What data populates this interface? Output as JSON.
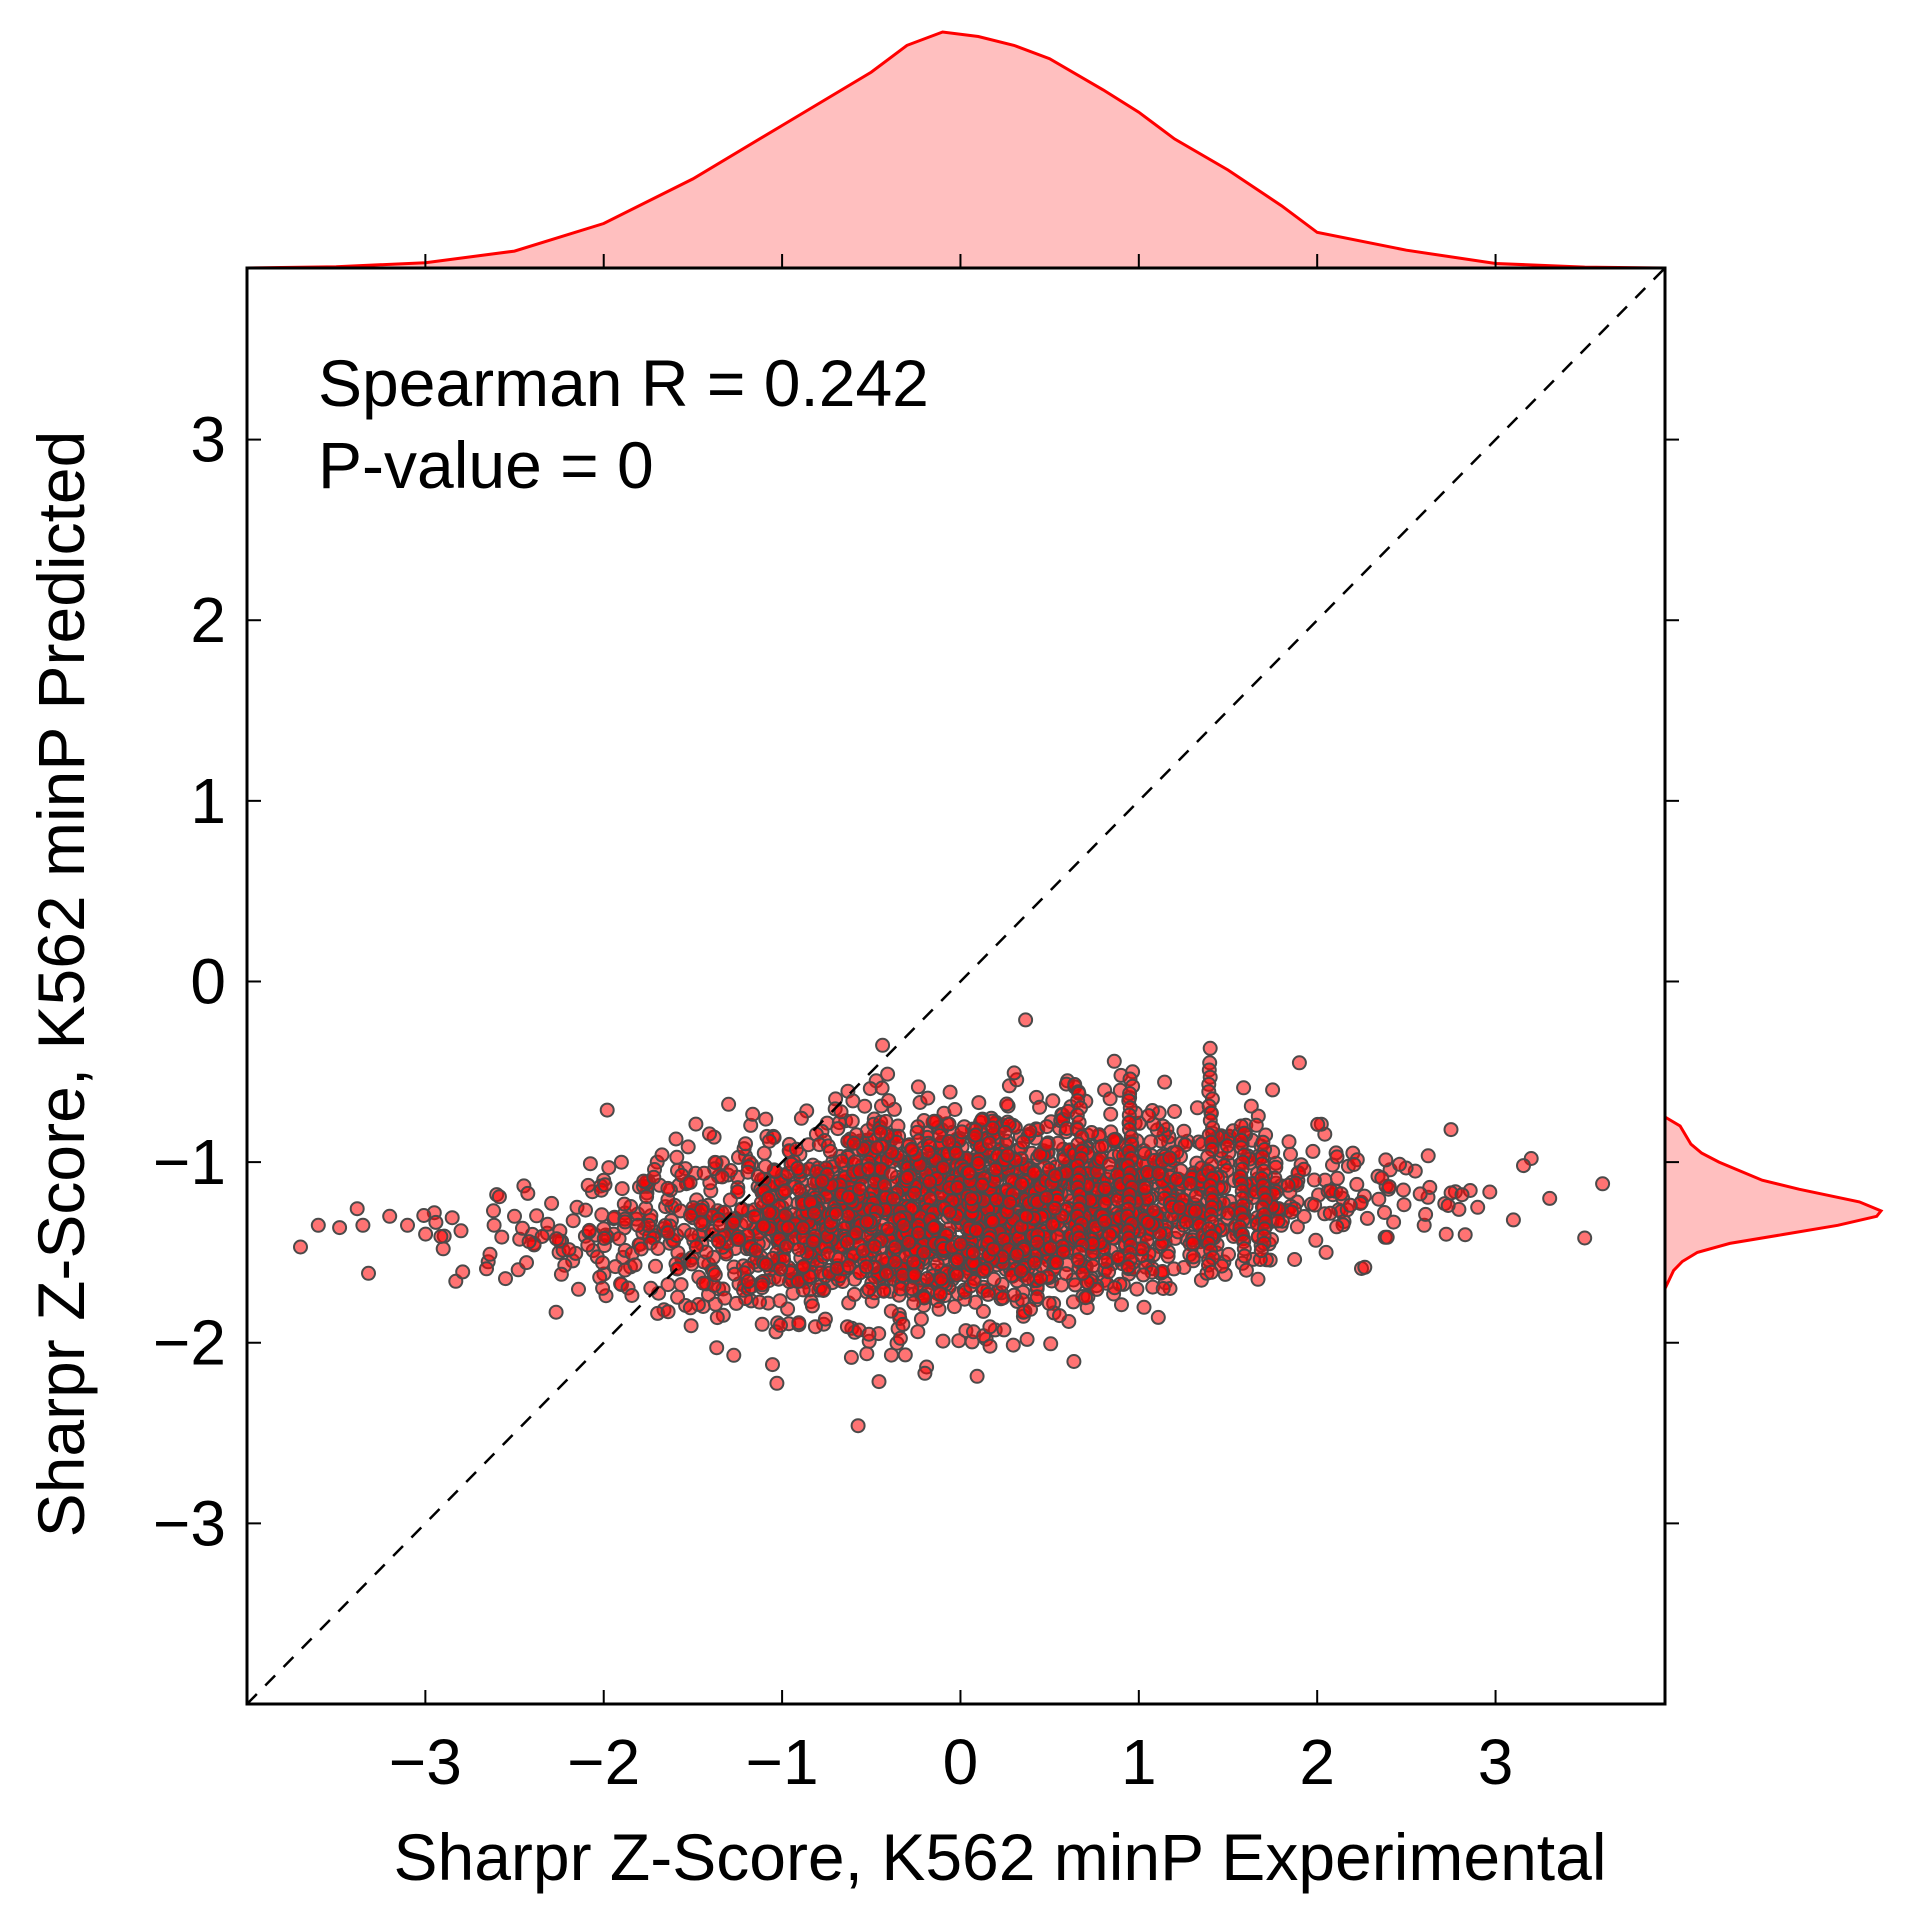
{
  "chart_data": {
    "type": "scatter",
    "xlabel": "Sharpr Z-Score, K562 minP Experimental",
    "ylabel": "Sharpr Z-Score, K562 minP Predicted",
    "xlim": [
      -4.0,
      3.95
    ],
    "ylim": [
      -4.0,
      3.95
    ],
    "x_ticks": [
      -3,
      -2,
      -1,
      0,
      1,
      2,
      3
    ],
    "y_ticks": [
      -3,
      -2,
      -1,
      0,
      1,
      2,
      3
    ],
    "x_tick_labels": [
      "−3",
      "−2",
      "−1",
      "0",
      "1",
      "2",
      "3"
    ],
    "y_tick_labels": [
      "−3",
      "−2",
      "−1",
      "0",
      "1",
      "2",
      "3"
    ],
    "annotations": [
      "Spearman R = 0.242",
      "P-value = 0"
    ],
    "reference_line": {
      "style": "dashed",
      "from": [
        -4.0,
        -4.0
      ],
      "to": [
        3.95,
        3.95
      ]
    },
    "marker_color": "#ff0000",
    "marker_edge_color": "#4a4a4a",
    "kde_color": "#ff0000",
    "kde_fill": "#ffbfbf",
    "grid": false,
    "points_sample": [
      [
        -3.6,
        -1.35
      ],
      [
        -3.35,
        -1.35
      ],
      [
        -3.2,
        -1.3
      ],
      [
        -3.1,
        -1.35
      ],
      [
        -2.95,
        -1.28
      ],
      [
        -2.9,
        -1.48
      ],
      [
        -2.8,
        -1.38
      ],
      [
        -2.6,
        -1.18
      ],
      [
        -2.4,
        -1.4
      ],
      [
        -2.25,
        -1.5
      ],
      [
        -2.15,
        -1.25
      ],
      [
        -2.0,
        -1.1
      ],
      [
        -1.85,
        -1.58
      ],
      [
        -1.7,
        -1.0
      ],
      [
        -1.55,
        -1.55
      ],
      [
        -1.3,
        -0.68
      ],
      [
        -1.2,
        -1.65
      ],
      [
        -1.1,
        -0.95
      ],
      [
        -0.9,
        -1.3
      ],
      [
        -0.7,
        -0.65
      ],
      [
        -0.5,
        -1.4
      ],
      [
        -0.35,
        -0.8
      ],
      [
        -0.15,
        -1.6
      ],
      [
        0.0,
        -1.2
      ],
      [
        0.2,
        -0.78
      ],
      [
        0.35,
        -1.72
      ],
      [
        0.5,
        -1.0
      ],
      [
        0.6,
        -0.55
      ],
      [
        0.75,
        -1.5
      ],
      [
        0.9,
        -0.52
      ],
      [
        1.05,
        -1.55
      ],
      [
        1.2,
        -0.72
      ],
      [
        1.4,
        -0.37
      ],
      [
        1.55,
        -1.4
      ],
      [
        1.75,
        -0.6
      ],
      [
        1.9,
        -0.45
      ],
      [
        2.05,
        -1.5
      ],
      [
        2.2,
        -0.95
      ],
      [
        2.4,
        -1.15
      ],
      [
        2.55,
        -1.05
      ],
      [
        2.75,
        -0.82
      ],
      [
        2.9,
        -1.25
      ],
      [
        3.1,
        -1.32
      ],
      [
        3.2,
        -0.98
      ],
      [
        3.5,
        -1.42
      ],
      [
        3.6,
        -1.12
      ],
      [
        -1.0,
        -1.25
      ],
      [
        0.1,
        -1.3
      ],
      [
        1.0,
        -1.2
      ],
      [
        1.4,
        -1.1
      ],
      [
        1.7,
        -1.25
      ],
      [
        -2.5,
        -1.3
      ],
      [
        2.6,
        -1.35
      ]
    ],
    "x_marginal_density": {
      "x": [
        -4.0,
        -3.5,
        -3.0,
        -2.5,
        -2.0,
        -1.5,
        -1.0,
        -0.5,
        -0.3,
        -0.1,
        0.1,
        0.3,
        0.5,
        0.8,
        1.0,
        1.2,
        1.5,
        1.8,
        2.0,
        2.5,
        3.0,
        3.5,
        3.95
      ],
      "density": [
        0.0,
        0.003,
        0.012,
        0.038,
        0.1,
        0.2,
        0.32,
        0.44,
        0.5,
        0.53,
        0.52,
        0.5,
        0.47,
        0.4,
        0.35,
        0.29,
        0.22,
        0.14,
        0.08,
        0.04,
        0.01,
        0.002,
        0.0
      ]
    },
    "y_marginal_density": {
      "y": [
        -1.7,
        -1.6,
        -1.55,
        -1.5,
        -1.45,
        -1.4,
        -1.35,
        -1.3,
        -1.27,
        -1.22,
        -1.15,
        -1.1,
        -1.0,
        -0.95,
        -0.9,
        -0.8,
        -0.75
      ],
      "density": [
        0.0,
        0.04,
        0.08,
        0.15,
        0.3,
        0.55,
        0.8,
        0.98,
        1.0,
        0.9,
        0.62,
        0.45,
        0.25,
        0.17,
        0.12,
        0.07,
        0.0
      ]
    }
  }
}
